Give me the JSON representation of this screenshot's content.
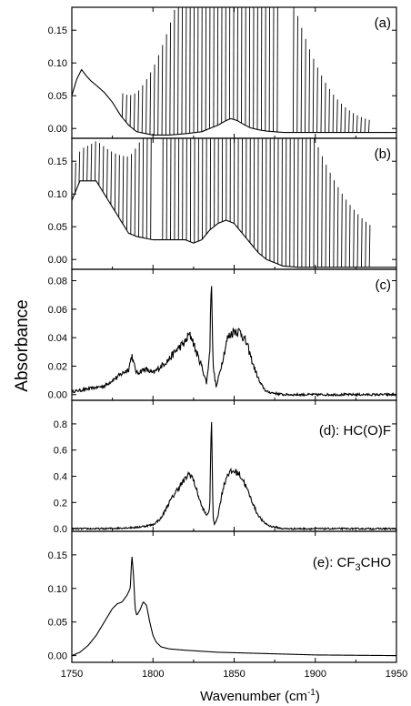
{
  "figure": {
    "ylabel": "Absorbance",
    "xlabel": "Wavenumber (cm",
    "xlabel_sup": "-1",
    "xlabel_end": ")"
  },
  "chart_data": [
    {
      "type": "line",
      "panel_label": "(a)",
      "xlim": [
        1750,
        1950
      ],
      "ylim": [
        -0.015,
        0.185
      ],
      "yticks": [
        "0.00",
        "0.05",
        "0.10",
        "0.15"
      ],
      "series": [
        {
          "x": [
            1750,
            1753,
            1756,
            1759,
            1762,
            1765,
            1770,
            1775,
            1780,
            1785,
            1790,
            1800,
            1810,
            1820,
            1830,
            1840,
            1845,
            1848,
            1852,
            1856,
            1860,
            1865,
            1870,
            1880,
            1890,
            1900,
            1910,
            1920,
            1930,
            1940,
            1950
          ],
          "y": [
            0.05,
            0.075,
            0.09,
            0.08,
            0.072,
            0.066,
            0.055,
            0.04,
            0.02,
            0.005,
            -0.005,
            -0.01,
            -0.01,
            -0.008,
            -0.005,
            0.005,
            0.012,
            0.015,
            0.012,
            0.006,
            0.001,
            -0.002,
            -0.004,
            -0.006,
            -0.006,
            -0.006,
            -0.006,
            -0.006,
            -0.006,
            -0.006,
            -0.006
          ]
        }
      ],
      "lines": {
        "start": 1781,
        "end": 1935,
        "spacing": 2.45,
        "center": 1850,
        "width": 32,
        "amp": 0.4,
        "floor": 0.012,
        "gap_start": 1878,
        "gap_end": 1884
      }
    },
    {
      "type": "line",
      "panel_label": "(b)",
      "xlim": [
        1750,
        1950
      ],
      "ylim": [
        -0.015,
        0.185
      ],
      "yticks": [
        "0.00",
        "0.05",
        "0.10",
        "0.15"
      ],
      "series": [
        {
          "x": [
            1750,
            1755,
            1760,
            1765,
            1770,
            1775,
            1780,
            1785,
            1790,
            1800,
            1810,
            1820,
            1825,
            1830,
            1835,
            1840,
            1845,
            1850,
            1855,
            1860,
            1865,
            1870,
            1880,
            1890,
            1900,
            1910,
            1920,
            1930,
            1940,
            1950
          ],
          "y": [
            0.09,
            0.12,
            0.12,
            0.12,
            0.1,
            0.08,
            0.06,
            0.04,
            0.035,
            0.03,
            0.03,
            0.03,
            0.025,
            0.03,
            0.045,
            0.055,
            0.06,
            0.055,
            0.04,
            0.025,
            0.01,
            0.0,
            -0.01,
            -0.012,
            -0.012,
            -0.012,
            -0.012,
            -0.012,
            -0.012,
            -0.012
          ]
        }
      ],
      "lines": {
        "start": 1752,
        "end": 1935,
        "spacing": 2.45,
        "center": 1850,
        "width": 40,
        "amp": 0.4,
        "floor": 0.035,
        "gap_start": 1800,
        "gap_end": 1805
      }
    },
    {
      "type": "line",
      "panel_label": "(c)",
      "xlim": [
        1750,
        1950
      ],
      "ylim": [
        -0.004,
        0.088
      ],
      "yticks": [
        "0.00",
        "0.02",
        "0.04",
        "0.06",
        "0.08"
      ],
      "series": [
        {
          "x": [
            1750,
            1760,
            1770,
            1775,
            1780,
            1785,
            1787,
            1788,
            1790,
            1795,
            1800,
            1805,
            1810,
            1815,
            1820,
            1822,
            1824,
            1826,
            1830,
            1833,
            1835,
            1836,
            1837,
            1839,
            1842,
            1846,
            1850,
            1854,
            1858,
            1862,
            1866,
            1870,
            1880,
            1890,
            1900,
            1910,
            1920,
            1930,
            1940,
            1950
          ],
          "y": [
            0.002,
            0.004,
            0.006,
            0.01,
            0.014,
            0.018,
            0.028,
            0.022,
            0.015,
            0.018,
            0.015,
            0.02,
            0.025,
            0.032,
            0.037,
            0.042,
            0.04,
            0.032,
            0.02,
            0.008,
            0.03,
            0.088,
            0.02,
            0.005,
            0.02,
            0.04,
            0.045,
            0.044,
            0.035,
            0.02,
            0.008,
            0.002,
            0.0,
            0.0,
            0.0,
            0.0,
            0.0,
            0.0,
            0.0,
            0.0
          ]
        }
      ],
      "noise": 0.004
    },
    {
      "type": "line",
      "panel_label": "(d): HC(O)F",
      "xlim": [
        1750,
        1950
      ],
      "ylim": [
        -0.02,
        0.98
      ],
      "yticks": [
        "0.0",
        "0.2",
        "0.4",
        "0.6",
        "0.8"
      ],
      "series": [
        {
          "x": [
            1750,
            1770,
            1790,
            1800,
            1805,
            1810,
            1815,
            1820,
            1822,
            1824,
            1826,
            1828,
            1830,
            1833,
            1835,
            1836,
            1837,
            1838,
            1840,
            1843,
            1846,
            1850,
            1853,
            1856,
            1860,
            1864,
            1868,
            1872,
            1880,
            1900,
            1920,
            1950
          ],
          "y": [
            0.0,
            0.0,
            0.01,
            0.03,
            0.08,
            0.2,
            0.3,
            0.38,
            0.42,
            0.4,
            0.33,
            0.25,
            0.17,
            0.1,
            0.15,
            0.92,
            0.08,
            0.03,
            0.1,
            0.3,
            0.42,
            0.44,
            0.42,
            0.36,
            0.24,
            0.12,
            0.05,
            0.02,
            0.0,
            0.0,
            0.0,
            0.0
          ]
        }
      ],
      "noise": 0.03
    },
    {
      "type": "line",
      "panel_label_main": "(e): CF",
      "panel_label_sub": "3",
      "panel_label_end": "CHO",
      "xlim": [
        1750,
        1950
      ],
      "ylim": [
        -0.01,
        0.185
      ],
      "yticks": [
        "0.00",
        "0.05",
        "0.10",
        "0.15"
      ],
      "xticks": [
        "1750",
        "1800",
        "1850",
        "1900",
        "1950"
      ],
      "series": [
        {
          "x": [
            1750,
            1755,
            1760,
            1765,
            1770,
            1775,
            1778,
            1781,
            1784,
            1786,
            1787,
            1788,
            1789,
            1790,
            1792,
            1794,
            1796,
            1798,
            1800,
            1802,
            1805,
            1810,
            1820,
            1840,
            1870,
            1900,
            1950
          ],
          "y": [
            0.0,
            0.005,
            0.015,
            0.03,
            0.05,
            0.07,
            0.077,
            0.08,
            0.09,
            0.1,
            0.15,
            0.12,
            0.07,
            0.06,
            0.068,
            0.08,
            0.075,
            0.05,
            0.03,
            0.02,
            0.013,
            0.01,
            0.008,
            0.005,
            0.003,
            0.001,
            0.0
          ]
        }
      ],
      "noise": 0.0
    }
  ]
}
